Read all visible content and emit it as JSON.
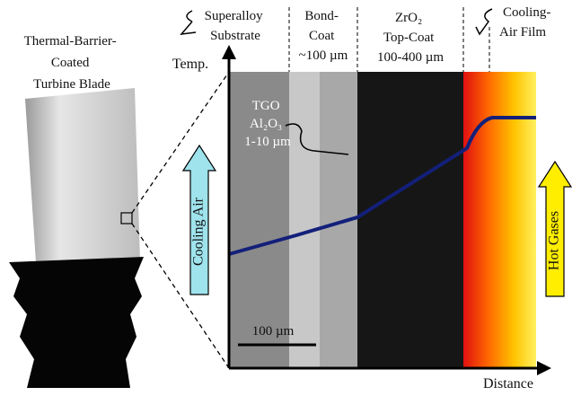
{
  "blade_label": [
    "Thermal-Barrier-",
    "Coated",
    "Turbine Blade"
  ],
  "layers": {
    "substrate": [
      "Superalloy",
      "Substrate"
    ],
    "bond_coat": [
      "Bond-",
      "Coat",
      "~100 µm"
    ],
    "top_coat": [
      "ZrO₂",
      "Top-Coat",
      "100-400 µm"
    ],
    "film": [
      "Cooling-",
      "Air Film"
    ]
  },
  "tgo": [
    "TGO",
    "Al₂O₃",
    "1-10 µm"
  ],
  "y_axis_label": "Temp.",
  "x_axis_label": "Distance",
  "cooling_air": "Cooling Air",
  "hot_gases": "Hot Gases",
  "scale_bar": "100 µm"
}
